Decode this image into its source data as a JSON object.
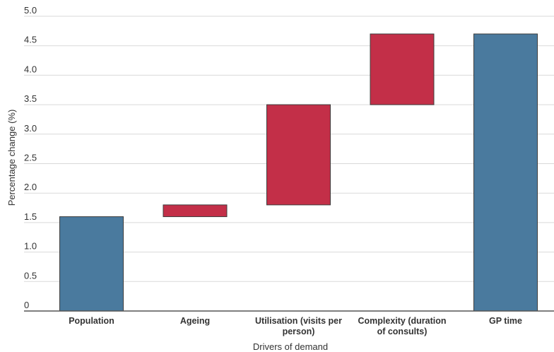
{
  "chart_data": {
    "type": "waterfall",
    "title": "",
    "xlabel": "Drivers of demand",
    "ylabel": "Percentage change (%)",
    "ylim": [
      0,
      5.0
    ],
    "yticks": [
      "0",
      "0.5",
      "1.0",
      "1.5",
      "2.0",
      "2.5",
      "3.0",
      "3.5",
      "4.0",
      "4.5",
      "5.0"
    ],
    "grid": true,
    "categories": [
      [
        "Population"
      ],
      [
        "Ageing"
      ],
      [
        "Utilisation (visits per",
        "person)"
      ],
      [
        "Complexity (duration",
        "of consults)"
      ],
      [
        "GP time"
      ]
    ],
    "bars": [
      {
        "start": 0,
        "end": 1.6,
        "kind": "total"
      },
      {
        "start": 1.6,
        "end": 1.8,
        "kind": "increase"
      },
      {
        "start": 1.8,
        "end": 3.5,
        "kind": "increase"
      },
      {
        "start": 3.5,
        "end": 4.7,
        "kind": "increase"
      },
      {
        "start": 0,
        "end": 4.7,
        "kind": "total"
      }
    ],
    "colors": {
      "total": "#4a7a9e",
      "increase": "#c32f48",
      "grid": "#d9d9d9",
      "axis": "#555555",
      "stroke": "#3d3d3d"
    }
  }
}
